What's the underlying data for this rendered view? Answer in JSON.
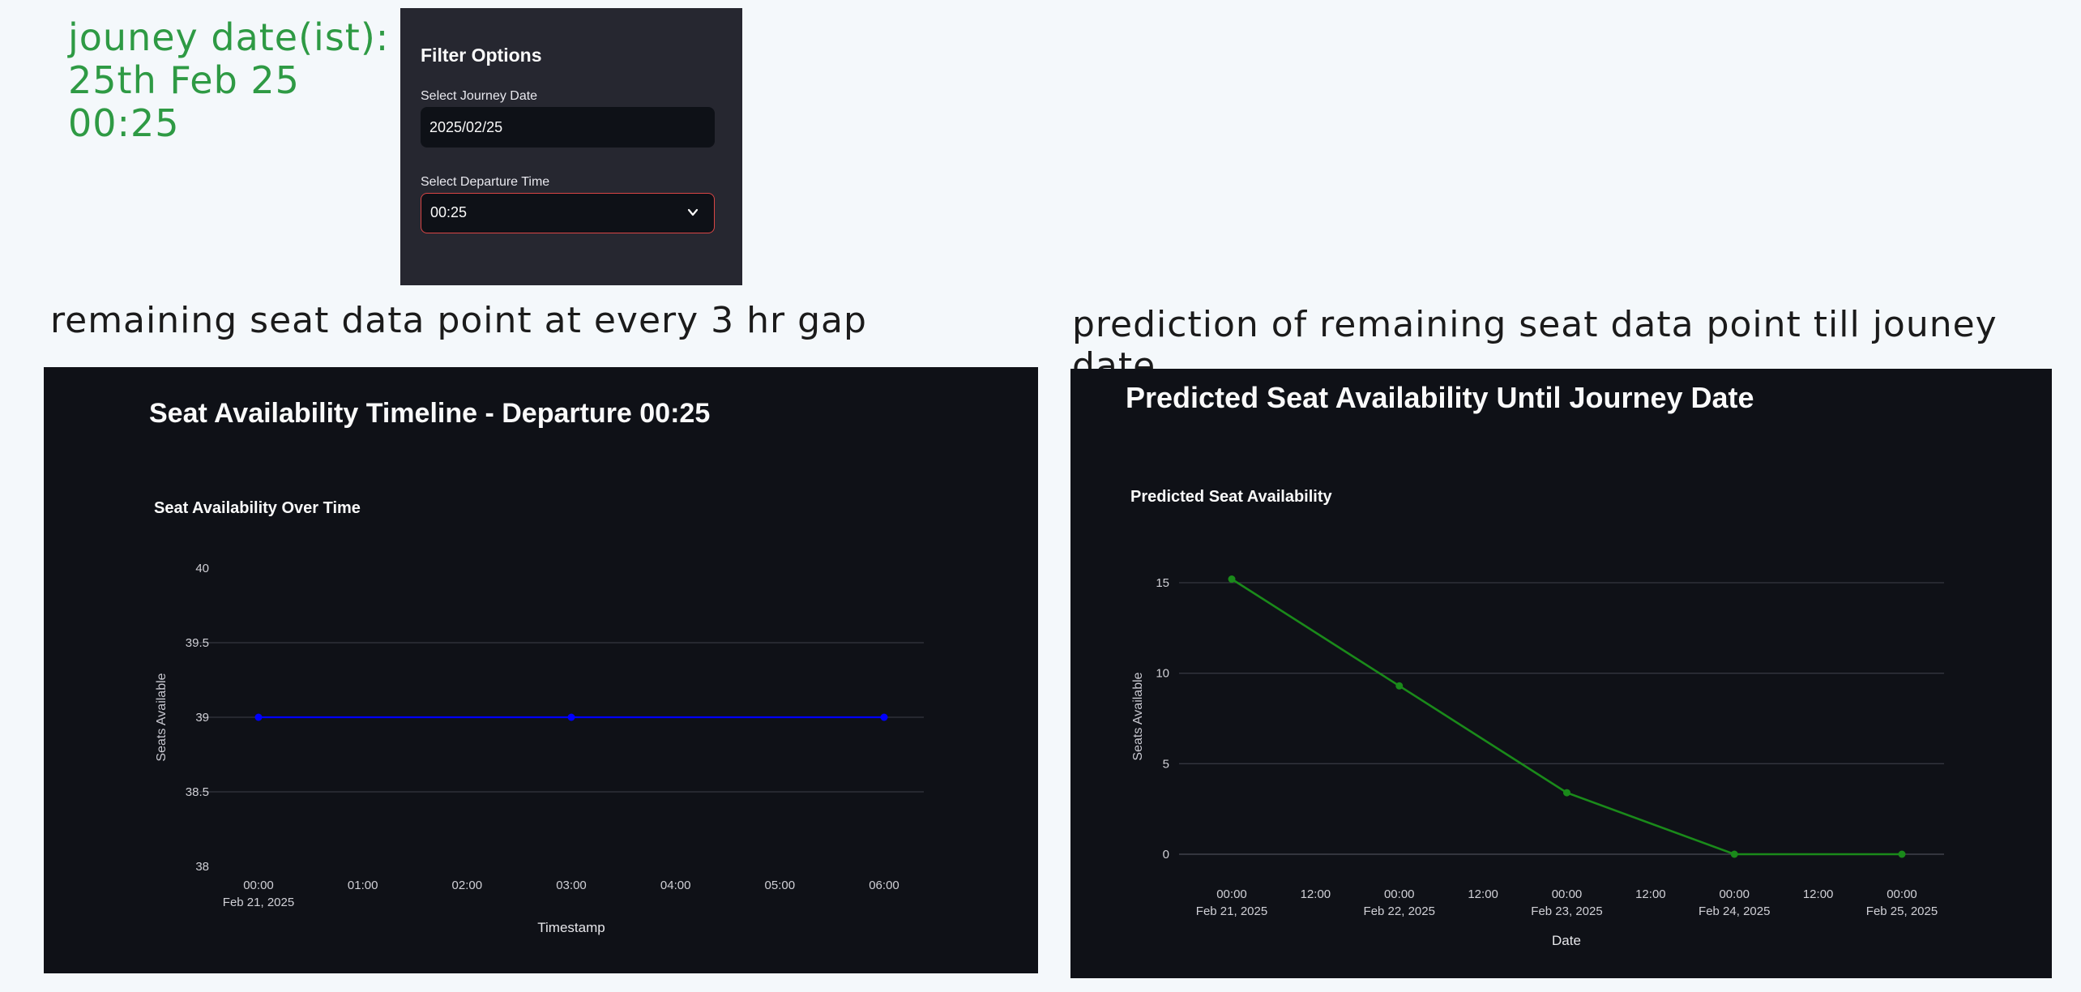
{
  "annotations": {
    "journey_date_lines": [
      "jouney date(ist):",
      "25th Feb 25",
      "00:25"
    ],
    "left_caption": "remaining seat data point at every 3 hr gap",
    "right_caption": "prediction of remaining seat data point till jouney date"
  },
  "filter_panel": {
    "title": "Filter Options",
    "date_label": "Select Journey Date",
    "date_value": "2025/02/25",
    "time_label": "Select Departure Time",
    "time_value": "00:25",
    "chevron_icon": "chevron-down-icon"
  },
  "left_panel": {
    "heading": "Seat Availability Timeline - Departure 00:25",
    "chart_data": {
      "type": "line",
      "title": "Seat Availability Over Time",
      "xlabel": "Timestamp",
      "ylabel": "Seats Available",
      "x_ticks": [
        {
          "hour": 0,
          "label": "00:00",
          "sublabel": "Feb 21, 2025"
        },
        {
          "hour": 1,
          "label": "01:00"
        },
        {
          "hour": 2,
          "label": "02:00"
        },
        {
          "hour": 3,
          "label": "03:00"
        },
        {
          "hour": 4,
          "label": "04:00"
        },
        {
          "hour": 5,
          "label": "05:00"
        },
        {
          "hour": 6,
          "label": "06:00"
        }
      ],
      "y_ticks": [
        "40",
        "39.5",
        "39",
        "38.5",
        "38"
      ],
      "ylim": [
        38,
        40
      ],
      "xlim": [
        "2025-02-21 00:00",
        "2025-02-21 06:00"
      ],
      "series": [
        {
          "color": "#0000ff",
          "points": [
            {
              "x": "2025-02-21 00:00",
              "hour": 0,
              "y": 39
            },
            {
              "x": "2025-02-21 03:00",
              "hour": 3,
              "y": 39
            },
            {
              "x": "2025-02-21 06:00",
              "hour": 6,
              "y": 39
            }
          ]
        }
      ],
      "grid": true
    }
  },
  "right_panel": {
    "heading": "Predicted Seat Availability Until Journey Date",
    "chart_data": {
      "type": "line",
      "title": "Predicted Seat Availability",
      "xlabel": "Date",
      "ylabel": "Seats Available",
      "x_ticks": [
        {
          "day": 0,
          "label": "00:00",
          "sublabel": "Feb 21, 2025"
        },
        {
          "day": 0.5,
          "label": "12:00"
        },
        {
          "day": 1,
          "label": "00:00",
          "sublabel": "Feb 22, 2025"
        },
        {
          "day": 1.5,
          "label": "12:00"
        },
        {
          "day": 2,
          "label": "00:00",
          "sublabel": "Feb 23, 2025"
        },
        {
          "day": 2.5,
          "label": "12:00"
        },
        {
          "day": 3,
          "label": "00:00",
          "sublabel": "Feb 24, 2025"
        },
        {
          "day": 3.5,
          "label": "12:00"
        },
        {
          "day": 4,
          "label": "00:00",
          "sublabel": "Feb 25, 2025"
        }
      ],
      "y_ticks": [
        "15",
        "10",
        "5",
        "0"
      ],
      "ylim": [
        -1,
        17
      ],
      "series": [
        {
          "color": "#1a8a1a",
          "points": [
            {
              "x": "2025-02-21",
              "day": 0,
              "y": 15.2
            },
            {
              "x": "2025-02-22",
              "day": 1,
              "y": 9.3
            },
            {
              "x": "2025-02-23",
              "day": 2,
              "y": 3.4
            },
            {
              "x": "2025-02-24",
              "day": 3,
              "y": 0
            },
            {
              "x": "2025-02-25",
              "day": 4,
              "y": 0
            }
          ]
        }
      ],
      "grid": true
    }
  }
}
